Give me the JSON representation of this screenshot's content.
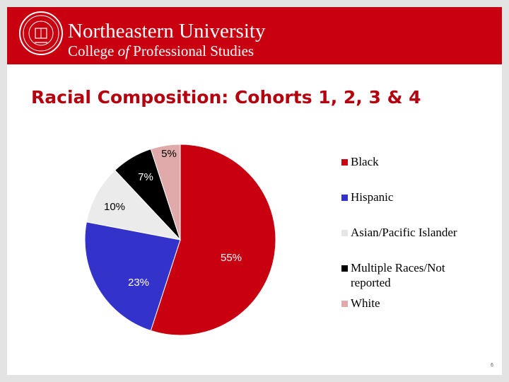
{
  "header": {
    "university": "Northeastern University",
    "college_before": "College ",
    "college_italic": "of",
    "college_after": " Professional Studies",
    "brand_color": "#c8000f"
  },
  "slide_title": "Racial Composition: Cohorts 1, 2, 3 & 4",
  "page_number": "6",
  "chart_data": {
    "type": "pie",
    "title": "",
    "slices": [
      {
        "label": "Black",
        "value": 55,
        "display": "55%",
        "color": "#c8000f"
      },
      {
        "label": "Hispanic",
        "value": 23,
        "display": "23%",
        "color": "#3333cc"
      },
      {
        "label": "Asian/Pacific Islander",
        "value": 10,
        "display": "10%",
        "color": "#ebebeb"
      },
      {
        "label": "Multiple Races/Not reported",
        "value": 7,
        "display": "7%",
        "color": "#000000"
      },
      {
        "label": "White",
        "value": 5,
        "display": "5%",
        "color": "#e0aaaa"
      }
    ],
    "legend_position": "right"
  }
}
